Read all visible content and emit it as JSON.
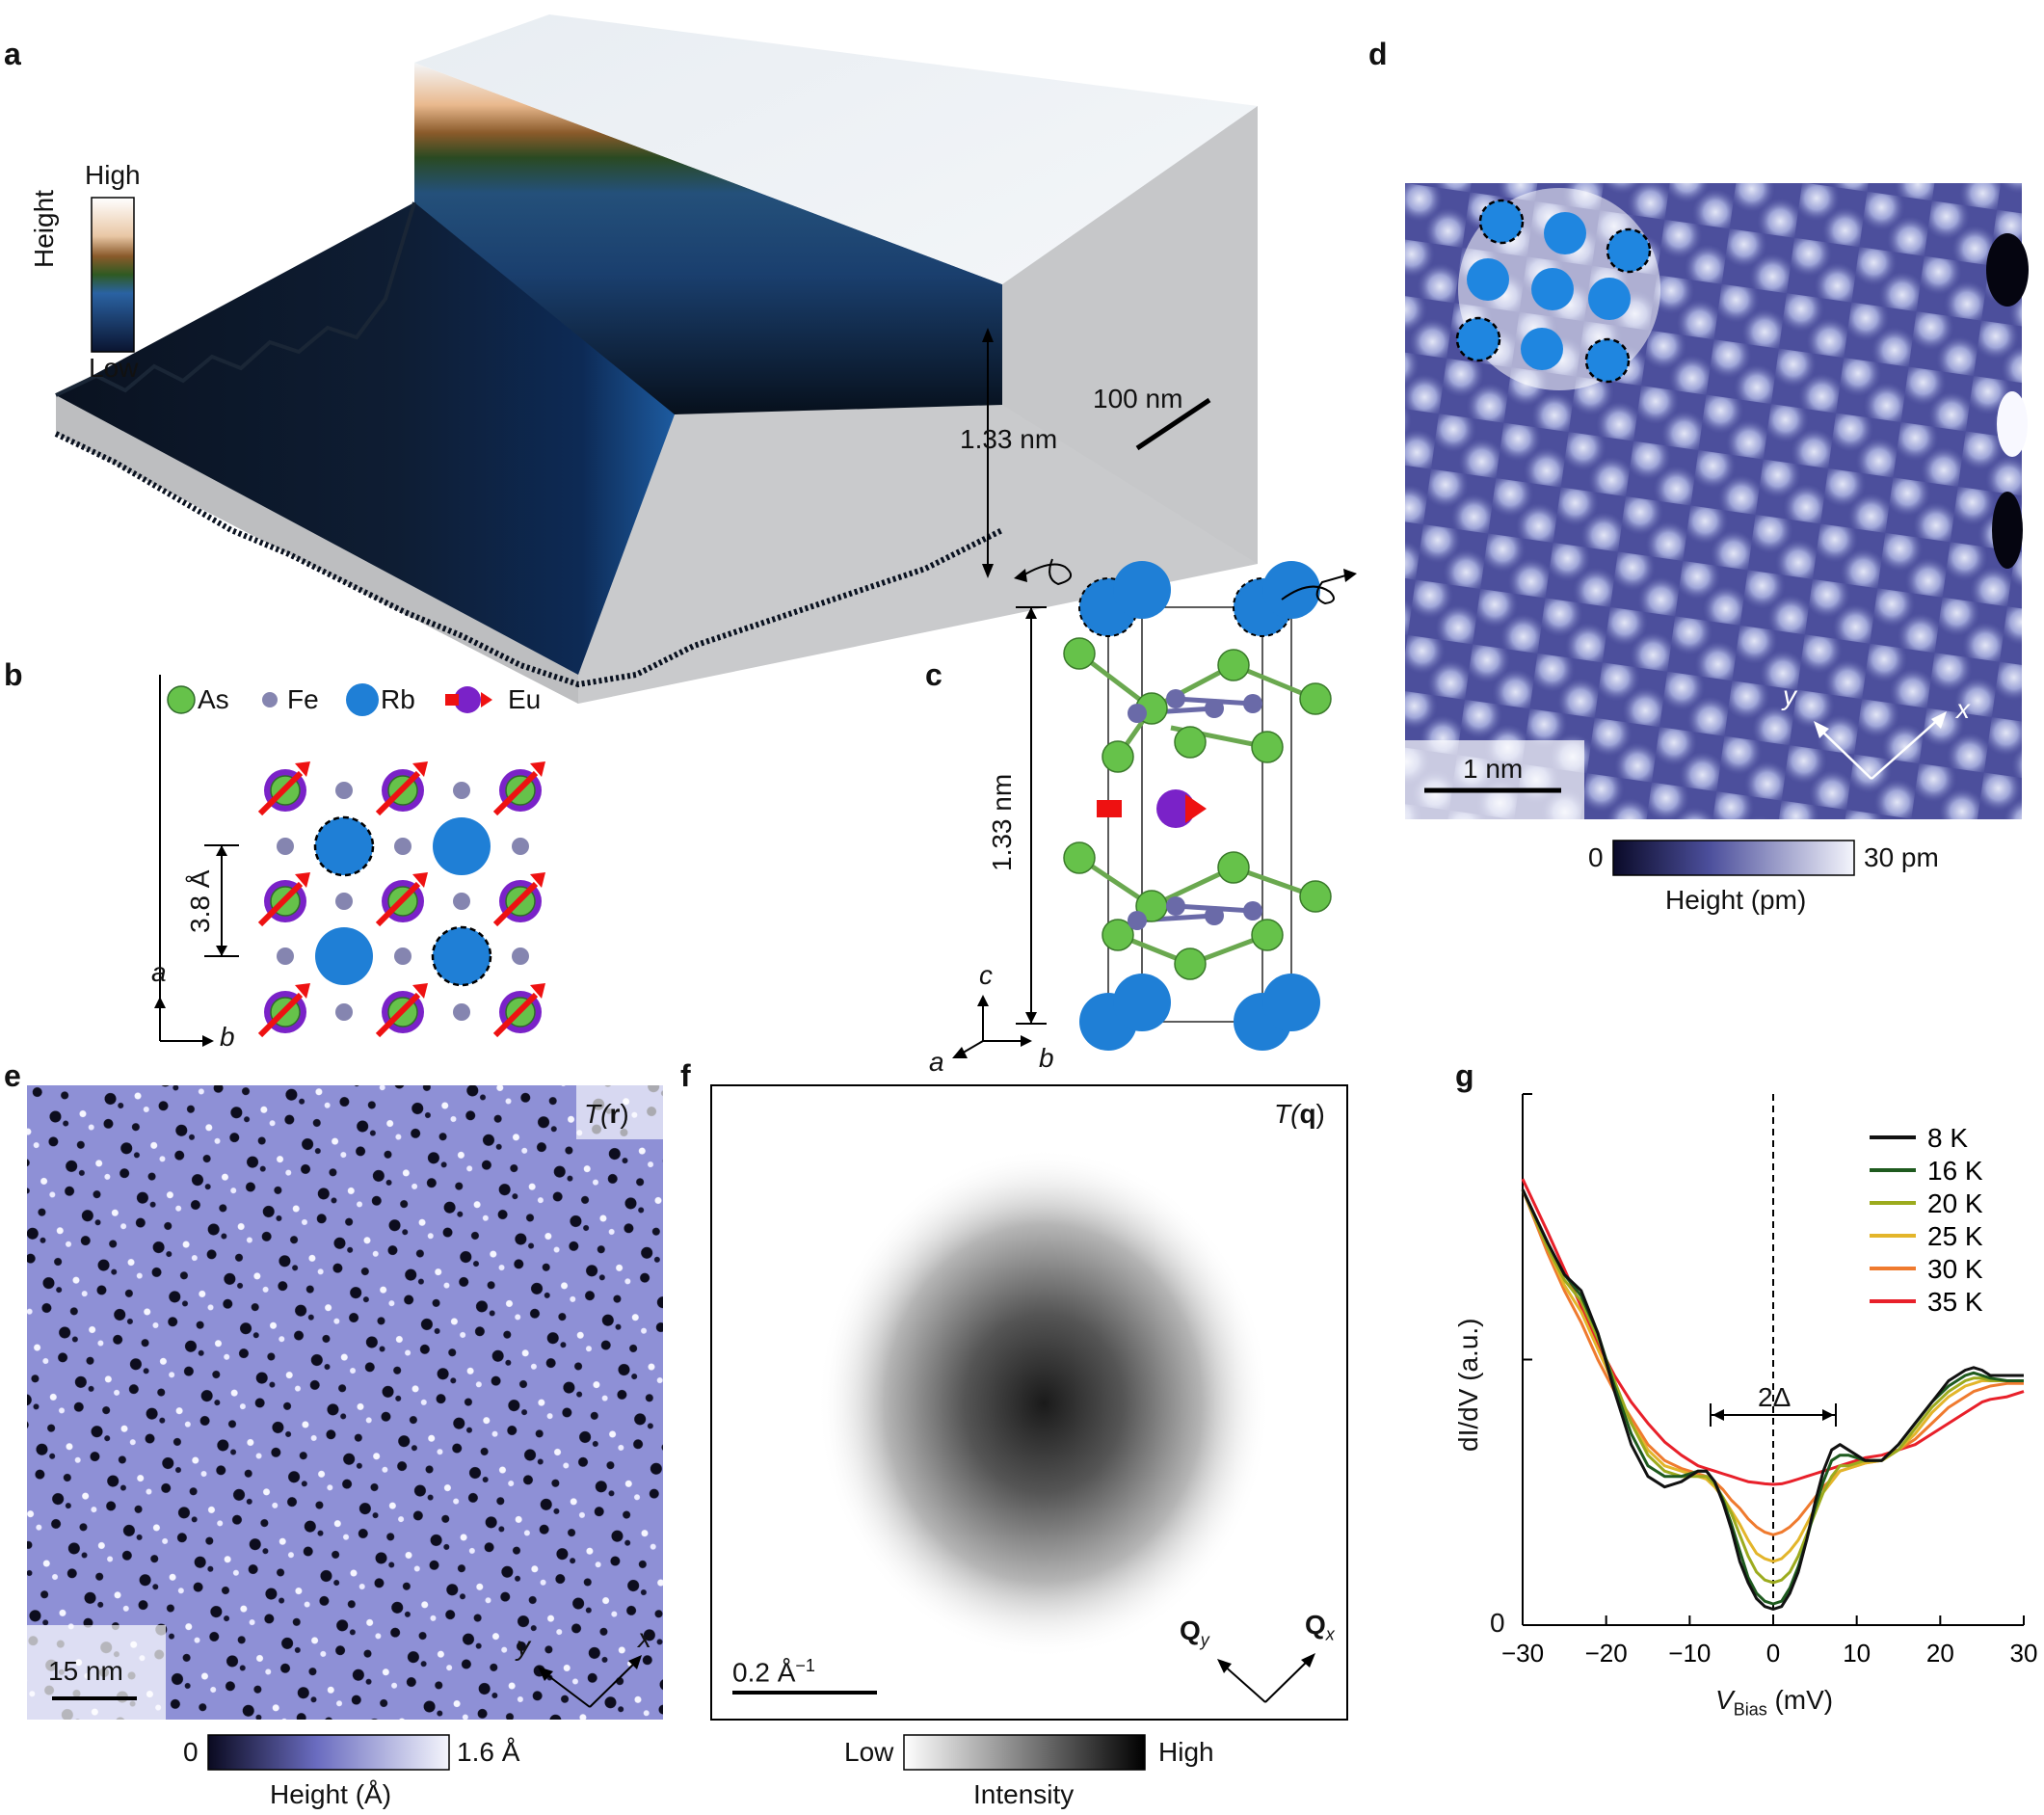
{
  "panels": {
    "a": {
      "label": "a",
      "colorbar_high": "High",
      "colorbar_low": "Low",
      "colorbar_title": "Height",
      "step_height": "1.33 nm",
      "scale_bar": "100 nm"
    },
    "b": {
      "label": "b",
      "legend": [
        {
          "name": "As",
          "color": "#66c24a"
        },
        {
          "name": "Fe",
          "color": "#8585b0"
        },
        {
          "name": "Rb",
          "color": "#1f7fd6"
        },
        {
          "name": "Eu",
          "color": "#7a22c8"
        }
      ],
      "lattice_spacing": "3.8 Å",
      "axis_vertical": "a",
      "axis_horizontal": "b"
    },
    "c": {
      "label": "c",
      "cell_height": "1.33 nm",
      "axis_c": "c",
      "axis_a": "a",
      "axis_b": "b"
    },
    "d": {
      "label": "d",
      "scale_bar": "1 nm",
      "axis_x": "x",
      "axis_y": "y",
      "colorbar_min": "0",
      "colorbar_max": "30 pm",
      "colorbar_title": "Height (pm)"
    },
    "e": {
      "label": "e",
      "tag_prefix": "T(",
      "tag_bold": "r",
      "tag_suffix": ")",
      "scale_bar": "15 nm",
      "axis_x": "x",
      "axis_y": "y",
      "colorbar_min": "0",
      "colorbar_max": "1.6 Å",
      "colorbar_title": "Height (Å)"
    },
    "f": {
      "label": "f",
      "tag_prefix": "T(",
      "tag_bold": "q",
      "tag_suffix": ")",
      "scale_bar": "0.2 Å",
      "scale_bar_sup": "−1",
      "axis_qx": "Q",
      "axis_qx_sub": "x",
      "axis_qy": "Q",
      "axis_qy_sub": "y",
      "colorbar_low": "Low",
      "colorbar_high": "High",
      "colorbar_title": "Intensity"
    },
    "g": {
      "label": "g",
      "ylabel": "dI/dV (a.u.)",
      "xlabel_main": "V",
      "xlabel_sub": "Bias",
      "xlabel_unit": " (mV)",
      "gap_label": "2Δ",
      "y_zero": "0"
    }
  },
  "chart_data": {
    "type": "line",
    "title": "",
    "xlabel": "V_Bias (mV)",
    "ylabel": "dI/dV (a.u.)",
    "xlim": [
      -30,
      30
    ],
    "ylim": [
      0,
      1
    ],
    "xticks": [
      -30,
      -20,
      -10,
      0,
      10,
      20,
      30
    ],
    "xtick_labels": [
      "−30",
      "−20",
      "−10",
      "0",
      "10",
      "20",
      "30"
    ],
    "gap_marker_mV": [
      -7.5,
      7.5
    ],
    "legend_position": "top-right",
    "series": [
      {
        "name": "8 K",
        "color": "#111111",
        "x": [
          -30,
          -27,
          -25,
          -23,
          -21,
          -19,
          -17,
          -15,
          -13,
          -11,
          -10,
          -9,
          -8,
          -7,
          -6,
          -5,
          -4,
          -3,
          -2,
          -1,
          0,
          1,
          2,
          3,
          4,
          5,
          6,
          7,
          8,
          9,
          10,
          11,
          13,
          15,
          17,
          19,
          21,
          23,
          24,
          25,
          26,
          28,
          30
        ],
        "y": [
          0.82,
          0.72,
          0.66,
          0.63,
          0.55,
          0.44,
          0.34,
          0.28,
          0.26,
          0.27,
          0.28,
          0.29,
          0.29,
          0.27,
          0.23,
          0.18,
          0.12,
          0.08,
          0.05,
          0.035,
          0.03,
          0.035,
          0.06,
          0.1,
          0.16,
          0.23,
          0.29,
          0.33,
          0.34,
          0.33,
          0.32,
          0.31,
          0.31,
          0.34,
          0.38,
          0.42,
          0.46,
          0.48,
          0.485,
          0.48,
          0.47,
          0.47,
          0.47
        ]
      },
      {
        "name": "16 K",
        "color": "#1e5a1e",
        "x": [
          -30,
          -27,
          -25,
          -23,
          -21,
          -19,
          -17,
          -15,
          -13,
          -11,
          -10,
          -9,
          -8,
          -7,
          -6,
          -5,
          -4,
          -3,
          -2,
          -1,
          0,
          1,
          2,
          3,
          4,
          5,
          6,
          7,
          8,
          9,
          10,
          11,
          13,
          15,
          17,
          19,
          21,
          23,
          24,
          25,
          26,
          28,
          30
        ],
        "y": [
          0.82,
          0.72,
          0.66,
          0.62,
          0.55,
          0.45,
          0.36,
          0.3,
          0.28,
          0.28,
          0.285,
          0.29,
          0.29,
          0.27,
          0.235,
          0.19,
          0.14,
          0.09,
          0.06,
          0.045,
          0.04,
          0.045,
          0.07,
          0.11,
          0.16,
          0.22,
          0.27,
          0.31,
          0.32,
          0.32,
          0.315,
          0.31,
          0.31,
          0.34,
          0.38,
          0.42,
          0.45,
          0.47,
          0.475,
          0.47,
          0.465,
          0.46,
          0.46
        ]
      },
      {
        "name": "20 K",
        "color": "#9cab1e",
        "x": [
          -30,
          -27,
          -25,
          -23,
          -21,
          -19,
          -17,
          -15,
          -13,
          -11,
          -10,
          -9,
          -8,
          -7,
          -6,
          -5,
          -4,
          -3,
          -2,
          -1,
          0,
          1,
          2,
          3,
          4,
          5,
          6,
          7,
          8,
          9,
          10,
          11,
          13,
          15,
          17,
          19,
          21,
          23,
          24,
          25,
          26,
          28,
          30
        ],
        "y": [
          0.82,
          0.71,
          0.65,
          0.61,
          0.54,
          0.46,
          0.38,
          0.32,
          0.29,
          0.28,
          0.28,
          0.28,
          0.28,
          0.265,
          0.24,
          0.21,
          0.17,
          0.13,
          0.1,
          0.085,
          0.08,
          0.085,
          0.1,
          0.13,
          0.17,
          0.21,
          0.25,
          0.28,
          0.3,
          0.3,
          0.305,
          0.31,
          0.31,
          0.33,
          0.37,
          0.41,
          0.44,
          0.46,
          0.465,
          0.465,
          0.46,
          0.46,
          0.46
        ]
      },
      {
        "name": "25 K",
        "color": "#e3b52a",
        "x": [
          -30,
          -27,
          -25,
          -23,
          -21,
          -19,
          -17,
          -15,
          -13,
          -11,
          -10,
          -9,
          -8,
          -7,
          -6,
          -5,
          -4,
          -3,
          -2,
          -1,
          0,
          1,
          2,
          3,
          4,
          5,
          6,
          7,
          8,
          9,
          10,
          11,
          13,
          15,
          17,
          19,
          21,
          23,
          24,
          25,
          26,
          28,
          30
        ],
        "y": [
          0.82,
          0.71,
          0.64,
          0.59,
          0.52,
          0.45,
          0.38,
          0.33,
          0.3,
          0.29,
          0.285,
          0.28,
          0.275,
          0.26,
          0.24,
          0.215,
          0.19,
          0.16,
          0.135,
          0.125,
          0.12,
          0.125,
          0.14,
          0.16,
          0.19,
          0.22,
          0.25,
          0.27,
          0.29,
          0.295,
          0.3,
          0.305,
          0.31,
          0.33,
          0.36,
          0.4,
          0.43,
          0.45,
          0.455,
          0.46,
          0.46,
          0.46,
          0.46
        ]
      },
      {
        "name": "30 K",
        "color": "#ef7a2e",
        "x": [
          -30,
          -27,
          -25,
          -23,
          -21,
          -19,
          -17,
          -15,
          -13,
          -11,
          -10,
          -9,
          -8,
          -7,
          -6,
          -5,
          -4,
          -3,
          -2,
          -1,
          0,
          1,
          2,
          3,
          4,
          5,
          6,
          7,
          8,
          9,
          10,
          11,
          13,
          15,
          17,
          19,
          21,
          23,
          24,
          25,
          26,
          28,
          30
        ],
        "y": [
          0.82,
          0.7,
          0.63,
          0.57,
          0.5,
          0.44,
          0.39,
          0.34,
          0.31,
          0.295,
          0.29,
          0.285,
          0.28,
          0.27,
          0.255,
          0.235,
          0.22,
          0.2,
          0.185,
          0.175,
          0.17,
          0.175,
          0.185,
          0.2,
          0.22,
          0.24,
          0.26,
          0.275,
          0.29,
          0.295,
          0.3,
          0.305,
          0.31,
          0.33,
          0.35,
          0.38,
          0.41,
          0.43,
          0.44,
          0.445,
          0.45,
          0.455,
          0.455
        ]
      },
      {
        "name": "35 K",
        "color": "#e8202a",
        "x": [
          -30,
          -27,
          -25,
          -23,
          -21,
          -19,
          -17,
          -15,
          -13,
          -11,
          -10,
          -9,
          -8,
          -7,
          -6,
          -5,
          -4,
          -3,
          -2,
          -1,
          0,
          1,
          2,
          3,
          4,
          5,
          6,
          7,
          8,
          9,
          10,
          11,
          13,
          15,
          17,
          19,
          21,
          23,
          24,
          25,
          26,
          28,
          30
        ],
        "y": [
          0.84,
          0.74,
          0.67,
          0.6,
          0.53,
          0.47,
          0.42,
          0.38,
          0.345,
          0.32,
          0.31,
          0.3,
          0.295,
          0.29,
          0.285,
          0.28,
          0.275,
          0.27,
          0.268,
          0.266,
          0.265,
          0.266,
          0.27,
          0.275,
          0.28,
          0.285,
          0.29,
          0.295,
          0.3,
          0.305,
          0.31,
          0.315,
          0.32,
          0.33,
          0.34,
          0.36,
          0.38,
          0.4,
          0.41,
          0.42,
          0.425,
          0.43,
          0.44
        ]
      }
    ]
  }
}
